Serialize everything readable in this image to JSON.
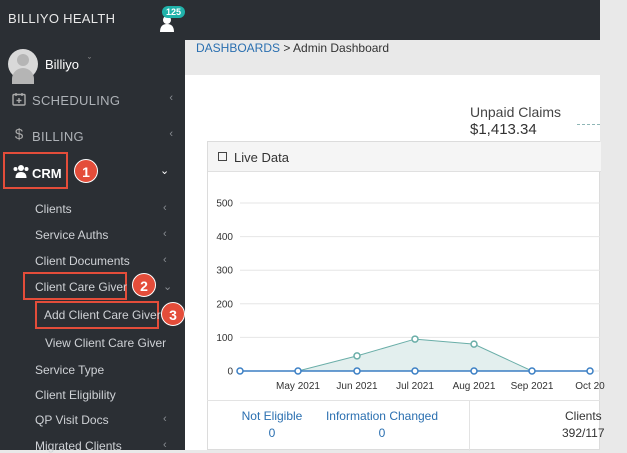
{
  "topbar": {
    "brand": "BILLIYO HEALTH",
    "notification_count": "125",
    "icon": "person-icon"
  },
  "sidebar": {
    "user": {
      "name": "Billiyo",
      "caret": "ˇ"
    },
    "items": [
      {
        "label": "SCHEDULING",
        "icon": "calendar-plus-icon",
        "chevron": "‹"
      },
      {
        "label": "BILLING",
        "icon": "dollar-icon",
        "chevron": "‹"
      },
      {
        "label": "CRM",
        "icon": "users-icon",
        "chevron": "⌄"
      }
    ],
    "crm_children": [
      {
        "label": "Clients",
        "chevron": "‹"
      },
      {
        "label": "Service Auths",
        "chevron": "‹"
      },
      {
        "label": "Client Documents",
        "chevron": "‹"
      },
      {
        "label": "Client Care Giver",
        "chevron": "⌄"
      },
      {
        "label": "Add Client Care Giver",
        "chevron": ""
      },
      {
        "label": "View Client Care Giver",
        "chevron": ""
      },
      {
        "label": "Service Type",
        "chevron": ""
      },
      {
        "label": "Client Eligibility",
        "chevron": ""
      },
      {
        "label": "QP Visit Docs",
        "chevron": "‹"
      },
      {
        "label": "Migrated Clients",
        "chevron": "‹"
      }
    ],
    "callouts": [
      "1",
      "2",
      "3"
    ]
  },
  "breadcrumb": {
    "root": "DASHBOARDS",
    "sep": " > ",
    "current": "Admin Dashboard"
  },
  "unpaid_claims": {
    "label": "Unpaid Claims",
    "value": "$1,413.34"
  },
  "panel": {
    "title": "Live Data"
  },
  "chart_data": {
    "type": "area",
    "categories": [
      "",
      "May 2021",
      "Jun 2021",
      "Jul 2021",
      "Aug 2021",
      "Sep 2021",
      "Oct 20"
    ],
    "series": [
      {
        "values": [
          0,
          0,
          0,
          0,
          0,
          0,
          0
        ],
        "color": "#3b7fc4"
      },
      {
        "values": [
          0,
          0,
          45,
          95,
          80,
          0,
          0
        ],
        "color": "#6aaea8"
      }
    ],
    "yticks": [
      "0",
      "100",
      "200",
      "300",
      "400",
      "500"
    ],
    "ylim": [
      0,
      500
    ],
    "grid": true
  },
  "stats": [
    {
      "label": "Not Eligible",
      "value": "0"
    },
    {
      "label": "Information Changed",
      "value": "0"
    },
    {
      "label": "Clients",
      "value": "392/117"
    }
  ]
}
